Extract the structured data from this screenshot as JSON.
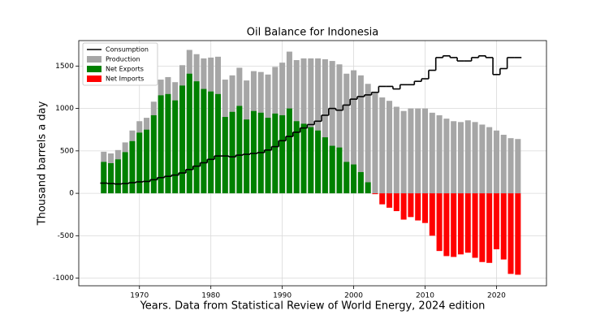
{
  "chart_data": {
    "type": "bar",
    "title": "Oil Balance for Indonesia",
    "x_label": "Years. Data from Statistical Review of World Energy, 2024 edition",
    "y_label": "Thousand barrels a day",
    "x": [
      1965,
      1966,
      1967,
      1968,
      1969,
      1970,
      1971,
      1972,
      1973,
      1974,
      1975,
      1976,
      1977,
      1978,
      1979,
      1980,
      1981,
      1982,
      1983,
      1984,
      1985,
      1986,
      1987,
      1988,
      1989,
      1990,
      1991,
      1992,
      1993,
      1994,
      1995,
      1996,
      1997,
      1998,
      1999,
      2000,
      2001,
      2002,
      2003,
      2004,
      2005,
      2006,
      2007,
      2008,
      2009,
      2010,
      2011,
      2012,
      2013,
      2014,
      2015,
      2016,
      2017,
      2018,
      2019,
      2020,
      2021,
      2022,
      2023
    ],
    "series": [
      {
        "name": "Consumption",
        "color": "#000000",
        "kind": "step",
        "values": [
          120,
          115,
          110,
          115,
          125,
          135,
          140,
          160,
          185,
          200,
          215,
          240,
          280,
          320,
          360,
          400,
          440,
          440,
          430,
          450,
          460,
          470,
          480,
          510,
          550,
          620,
          670,
          720,
          770,
          810,
          850,
          920,
          1000,
          980,
          1040,
          1110,
          1140,
          1160,
          1190,
          1260,
          1260,
          1230,
          1280,
          1280,
          1320,
          1350,
          1450,
          1600,
          1620,
          1600,
          1560,
          1560,
          1600,
          1620,
          1600,
          1400,
          1470,
          1600,
          1600
        ]
      },
      {
        "name": "Production",
        "color": "#a6a6a6",
        "kind": "bar",
        "values": [
          490,
          470,
          510,
          600,
          740,
          850,
          890,
          1080,
          1340,
          1370,
          1310,
          1510,
          1690,
          1640,
          1590,
          1600,
          1610,
          1340,
          1390,
          1480,
          1330,
          1440,
          1430,
          1400,
          1490,
          1540,
          1670,
          1570,
          1590,
          1590,
          1590,
          1580,
          1560,
          1520,
          1410,
          1450,
          1390,
          1290,
          1180,
          1130,
          1090,
          1020,
          970,
          1000,
          1000,
          1000,
          950,
          920,
          880,
          850,
          840,
          860,
          840,
          810,
          780,
          740,
          690,
          650,
          640
        ]
      },
      {
        "name": "Net Exports",
        "color": "#008000",
        "kind": "bar",
        "values": [
          370,
          355,
          400,
          485,
          615,
          715,
          750,
          920,
          1155,
          1170,
          1095,
          1270,
          1410,
          1320,
          1230,
          1200,
          1170,
          900,
          960,
          1030,
          870,
          970,
          950,
          890,
          940,
          920,
          1000,
          850,
          820,
          780,
          740,
          660,
          560,
          540,
          370,
          340,
          250,
          130,
          null,
          null,
          null,
          null,
          null,
          null,
          null,
          null,
          null,
          null,
          null,
          null,
          null,
          null,
          null,
          null,
          null,
          null,
          null,
          null,
          null
        ]
      },
      {
        "name": "Net Imports",
        "color": "#ff0000",
        "kind": "bar",
        "values": [
          null,
          null,
          null,
          null,
          null,
          null,
          null,
          null,
          null,
          null,
          null,
          null,
          null,
          null,
          null,
          null,
          null,
          null,
          null,
          null,
          null,
          null,
          null,
          null,
          null,
          null,
          null,
          null,
          null,
          null,
          null,
          null,
          null,
          null,
          null,
          null,
          null,
          null,
          -10,
          -130,
          -170,
          -210,
          -310,
          -280,
          -320,
          -350,
          -500,
          -680,
          -740,
          -750,
          -720,
          -700,
          -760,
          -810,
          -820,
          -660,
          -780,
          -950,
          -960
        ]
      }
    ],
    "xlim": [
      1961.5,
      2027
    ],
    "ylim": [
      -1090,
      1800
    ],
    "xticks": [
      1970,
      1980,
      1990,
      2000,
      2010,
      2020
    ],
    "yticks": [
      -1000,
      -500,
      0,
      500,
      1000,
      1500
    ],
    "grid": true,
    "legend": "upper left"
  }
}
